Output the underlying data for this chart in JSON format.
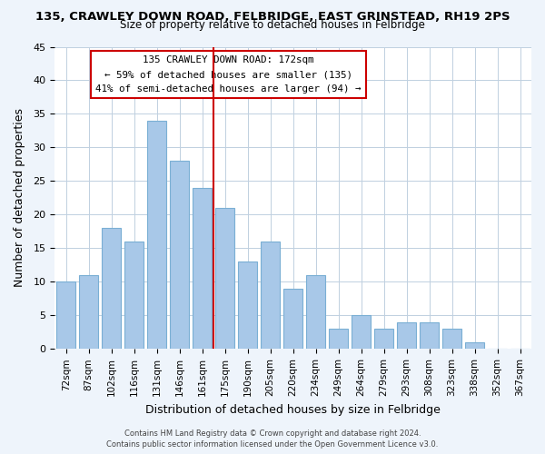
{
  "title_line1": "135, CRAWLEY DOWN ROAD, FELBRIDGE, EAST GRINSTEAD, RH19 2PS",
  "title_line2": "Size of property relative to detached houses in Felbridge",
  "xlabel": "Distribution of detached houses by size in Felbridge",
  "ylabel": "Number of detached properties",
  "bar_labels": [
    "72sqm",
    "87sqm",
    "102sqm",
    "116sqm",
    "131sqm",
    "146sqm",
    "161sqm",
    "175sqm",
    "190sqm",
    "205sqm",
    "220sqm",
    "234sqm",
    "249sqm",
    "264sqm",
    "279sqm",
    "293sqm",
    "308sqm",
    "323sqm",
    "338sqm",
    "352sqm",
    "367sqm"
  ],
  "bar_values": [
    10,
    11,
    18,
    16,
    34,
    28,
    24,
    21,
    13,
    16,
    9,
    11,
    3,
    5,
    3,
    4,
    4,
    3,
    1,
    0,
    0
  ],
  "bar_color": "#a8c8e8",
  "bar_edge_color": "#7aafd4",
  "vline_x": 6.5,
  "vline_color": "#cc0000",
  "ylim": [
    0,
    45
  ],
  "yticks": [
    0,
    5,
    10,
    15,
    20,
    25,
    30,
    35,
    40,
    45
  ],
  "annotation_title": "135 CRAWLEY DOWN ROAD: 172sqm",
  "annotation_line2": "← 59% of detached houses are smaller (135)",
  "annotation_line3": "41% of semi-detached houses are larger (94) →",
  "footer_line1": "Contains HM Land Registry data © Crown copyright and database right 2024.",
  "footer_line2": "Contains public sector information licensed under the Open Government Licence v3.0.",
  "bg_color": "#eef4fb",
  "plot_bg_color": "#ffffff"
}
